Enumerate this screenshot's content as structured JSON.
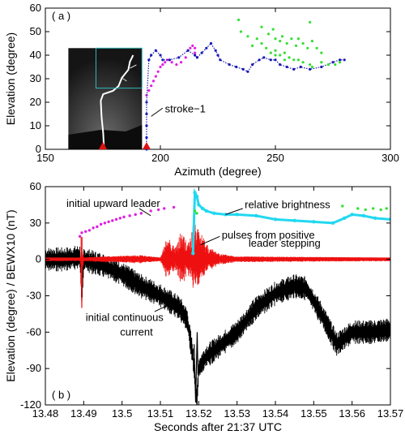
{
  "chart_data": [
    {
      "panel_label": "( a )",
      "type": "scatter",
      "xlabel": "Azimuth (degree)",
      "ylabel": "Elevation (degree)",
      "xlim": [
        150,
        300
      ],
      "ylim": [
        0,
        60
      ],
      "xticks": [
        150,
        200,
        250,
        300
      ],
      "yticks": [
        0,
        10,
        20,
        30,
        40,
        50,
        60
      ],
      "colors": {
        "magenta": "#e020e0",
        "blue": "#1a1ab4",
        "green": "#33e033",
        "marker": "#e01010",
        "inset_box": "#2fb8b8"
      },
      "annotations": [
        {
          "text": "stroke−1",
          "x": 202,
          "y": 17
        }
      ],
      "markers": [
        {
          "x": 175,
          "y": 0
        },
        {
          "x": 194,
          "y": 0
        }
      ],
      "inset_photo": {
        "xrange": [
          160,
          192
        ],
        "yrange": [
          0,
          43
        ]
      },
      "series": [
        {
          "color": "magenta",
          "points": [
            [
              194,
              23
            ],
            [
              195,
              25
            ],
            [
              196,
              27
            ],
            [
              197,
              29
            ],
            [
              198,
              31
            ],
            [
              199,
              33
            ],
            [
              200,
              35
            ],
            [
              201,
              36
            ],
            [
              202,
              37
            ],
            [
              203,
              38
            ],
            [
              204,
              38
            ],
            [
              205,
              37
            ],
            [
              207,
              36
            ],
            [
              209,
              37
            ],
            [
              211,
              39
            ],
            [
              212,
              42
            ],
            [
              213,
              43
            ],
            [
              214,
              44
            ],
            [
              215,
              43
            ],
            [
              215,
              41
            ]
          ]
        },
        {
          "color": "blue",
          "points": [
            [
              194,
              0
            ],
            [
              194,
              5
            ],
            [
              194,
              10
            ],
            [
              194,
              15
            ],
            [
              194,
              20
            ],
            [
              195,
              38
            ],
            [
              196,
              40
            ],
            [
              198,
              42
            ],
            [
              200,
              40
            ],
            [
              201,
              38
            ],
            [
              204,
              38
            ],
            [
              208,
              39
            ],
            [
              212,
              42
            ],
            [
              215,
              40
            ],
            [
              216,
              39
            ],
            [
              218,
              41
            ],
            [
              220,
              43
            ],
            [
              222,
              45
            ],
            [
              224,
              42
            ],
            [
              225,
              40
            ],
            [
              226,
              38
            ],
            [
              230,
              36
            ],
            [
              233,
              35
            ],
            [
              236,
              34
            ],
            [
              238,
              33
            ],
            [
              240,
              36
            ],
            [
              243,
              38
            ],
            [
              245,
              39
            ],
            [
              248,
              38
            ],
            [
              250,
              38
            ],
            [
              252,
              36
            ],
            [
              255,
              35
            ],
            [
              258,
              34
            ],
            [
              261,
              35
            ],
            [
              265,
              34
            ],
            [
              270,
              35
            ],
            [
              275,
              37
            ],
            [
              278,
              38
            ],
            [
              280,
              38
            ]
          ]
        },
        {
          "color": "green",
          "points": [
            [
              234,
              55
            ],
            [
              235,
              50
            ],
            [
              238,
              48
            ],
            [
              242,
              47
            ],
            [
              244,
              52
            ],
            [
              247,
              49
            ],
            [
              249,
              51
            ],
            [
              250,
              47
            ],
            [
              252,
              46
            ],
            [
              253,
              48
            ],
            [
              255,
              45
            ],
            [
              257,
              47
            ],
            [
              259,
              44
            ],
            [
              260,
              47
            ],
            [
              262,
              45
            ],
            [
              264,
              43
            ],
            [
              265,
              54
            ],
            [
              266,
              46
            ],
            [
              268,
              43
            ],
            [
              270,
              41
            ],
            [
              246,
              43
            ],
            [
              248,
              41
            ],
            [
              250,
              40
            ],
            [
              252,
              40
            ],
            [
              254,
              41
            ],
            [
              256,
              39
            ],
            [
              258,
              38
            ],
            [
              262,
              37
            ],
            [
              265,
              36
            ],
            [
              270,
              37
            ],
            [
              273,
              36
            ],
            [
              276,
              36
            ],
            [
              278,
              37
            ],
            [
              266,
              35
            ],
            [
              260,
              38
            ],
            [
              254,
              38
            ],
            [
              250,
              42
            ],
            [
              244,
              45
            ],
            [
              240,
              44
            ]
          ]
        }
      ]
    },
    {
      "panel_label": "( b )",
      "type": "line",
      "xlabel": "Seconds after 21:37 UTC",
      "ylabel": "Elevation (degree) / BEWX10 (nT)",
      "xlim": [
        13.48,
        13.57
      ],
      "ylim": [
        -120,
        60
      ],
      "xticks": [
        13.48,
        13.49,
        13.5,
        13.51,
        13.52,
        13.53,
        13.54,
        13.55,
        13.56,
        13.57
      ],
      "yticks": [
        -120,
        -90,
        -60,
        -30,
        0,
        30,
        60
      ],
      "colors": {
        "black": "#000000",
        "red": "#ee1010",
        "cyan": "#22d8f0",
        "magenta": "#e020e0",
        "green": "#33e033"
      },
      "annotations": [
        {
          "text": "initial upward leader",
          "x": 13.4855,
          "y": 46
        },
        {
          "text": "relative brightness",
          "x": 13.532,
          "y": 45
        },
        {
          "text": "pulses from positive",
          "x": 13.526,
          "y": 20
        },
        {
          "text": "leader stepping",
          "x": 13.533,
          "y": 13
        },
        {
          "text": "initial continuous",
          "x": 13.4905,
          "y": -48
        },
        {
          "text": "current",
          "x": 13.4995,
          "y": -60
        }
      ],
      "series": [
        {
          "color": "black",
          "label": "BEWX10",
          "x": [
            13.48,
            13.485,
            13.489,
            13.4895,
            13.49,
            13.495,
            13.5,
            13.505,
            13.51,
            13.515,
            13.517,
            13.5185,
            13.5195,
            13.52,
            13.522,
            13.524,
            13.526,
            13.53,
            13.535,
            13.54,
            13.545,
            13.548,
            13.552,
            13.556,
            13.56,
            13.565,
            13.57
          ],
          "y": [
            0,
            0,
            2,
            -30,
            0,
            -5,
            -12,
            -22,
            -30,
            -40,
            -50,
            -80,
            -118,
            -90,
            -80,
            -75,
            -70,
            -60,
            -40,
            -28,
            -22,
            -24,
            -45,
            -70,
            -60,
            -60,
            -58
          ]
        },
        {
          "color": "cyan",
          "label": "relative brightness",
          "x": [
            13.5185,
            13.519,
            13.5195,
            13.52,
            13.521,
            13.522,
            13.524,
            13.527,
            13.53,
            13.535,
            13.54,
            13.545,
            13.55,
            13.555,
            13.558,
            13.56,
            13.563,
            13.566,
            13.57
          ],
          "y": [
            5,
            55,
            52,
            45,
            42,
            40,
            38,
            37,
            37,
            36,
            33,
            32,
            31,
            30,
            34,
            37,
            36,
            34,
            33
          ]
        },
        {
          "color": "magenta",
          "label": "initial upward leader",
          "x": [
            13.489,
            13.4895,
            13.4905,
            13.4915,
            13.4925,
            13.4935,
            13.4945,
            13.4955,
            13.4965,
            13.4975,
            13.4985,
            13.4995,
            13.5005,
            13.502,
            13.5035,
            13.505,
            13.5075,
            13.5095,
            13.511,
            13.5135
          ],
          "y": [
            19,
            22,
            23,
            24,
            26,
            27,
            29,
            30,
            31,
            32,
            33,
            34,
            35,
            36,
            37,
            38,
            40,
            41,
            42,
            43
          ]
        },
        {
          "color": "green",
          "label": "",
          "x": [
            13.519,
            13.5195,
            13.5575,
            13.5615,
            13.5635,
            13.5655,
            13.5675,
            13.569
          ],
          "y": [
            40,
            38,
            44,
            42,
            41,
            42,
            41,
            42
          ]
        },
        {
          "color": "red",
          "label": "",
          "x": [
            13.48,
            13.489,
            13.4895,
            13.49,
            13.495,
            13.505,
            13.51,
            13.512,
            13.514,
            13.5155,
            13.517,
            13.519,
            13.5215,
            13.523,
            13.526,
            13.53,
            13.57
          ],
          "y": [
            0,
            0,
            -40,
            0,
            1,
            2,
            0,
            20,
            8,
            24,
            12,
            30,
            16,
            8,
            3,
            1,
            0
          ]
        }
      ]
    }
  ]
}
